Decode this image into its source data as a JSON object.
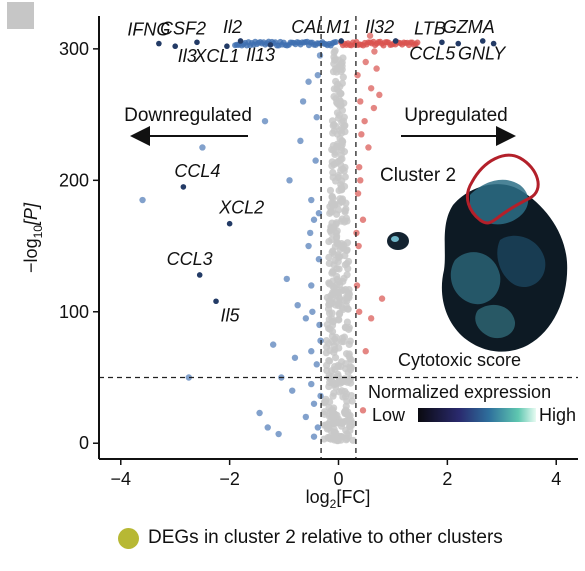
{
  "chart_data": {
    "type": "scatter",
    "xlabel_base": "log",
    "xlabel_sub": "2",
    "xlabel_tail": "[FC]",
    "ylabel_pre": "−log",
    "ylabel_sub": "10",
    "ylabel_tail": "[P]",
    "xlim": [
      -4.4,
      4.4
    ],
    "ylim": [
      -12,
      325
    ],
    "xticks": [
      -4,
      -2,
      0,
      2,
      4
    ],
    "yticks": [
      0,
      100,
      200,
      300
    ],
    "xtick_labels": [
      "−4",
      "−2",
      "0",
      "2",
      "4"
    ],
    "ytick_labels": [
      "0",
      "100",
      "200",
      "300"
    ],
    "fc_thresholds": [
      -0.32,
      0.32
    ],
    "p_threshold": 50,
    "grid": false,
    "colors": {
      "down": "#3f6fb0",
      "up": "#d9534f",
      "nonsig": "#c8c8c8",
      "label_point": "#233b66",
      "legend_dot": "#b7b834"
    },
    "labeled_genes": [
      {
        "gene": "IFNG",
        "x": -3.3,
        "y": 304
      },
      {
        "gene": "Il3",
        "x": -3.0,
        "y": 302
      },
      {
        "gene": "CSF2",
        "x": -2.6,
        "y": 305
      },
      {
        "gene": "XCL1",
        "x": -2.05,
        "y": 302
      },
      {
        "gene": "Il2",
        "x": -1.8,
        "y": 306
      },
      {
        "gene": "Il13",
        "x": -1.25,
        "y": 303
      },
      {
        "gene": "CALM1",
        "x": 0.05,
        "y": 306
      },
      {
        "gene": "Il32",
        "x": 1.05,
        "y": 306
      },
      {
        "gene": "LTB",
        "x": 1.9,
        "y": 305
      },
      {
        "gene": "CCL5",
        "x": 2.2,
        "y": 304
      },
      {
        "gene": "GZMA",
        "x": 2.65,
        "y": 306
      },
      {
        "gene": "GNLY",
        "x": 2.85,
        "y": 304
      },
      {
        "gene": "CCL4",
        "x": -2.85,
        "y": 195
      },
      {
        "gene": "XCL2",
        "x": -2.0,
        "y": 167
      },
      {
        "gene": "CCL3",
        "x": -2.55,
        "y": 128
      },
      {
        "gene": "Il5",
        "x": -2.25,
        "y": 108
      }
    ],
    "down_points": [
      [
        -0.9,
        200
      ],
      [
        -0.5,
        120
      ],
      [
        -0.55,
        150
      ],
      [
        -0.45,
        170
      ],
      [
        -0.7,
        230
      ],
      [
        -0.35,
        90
      ],
      [
        -0.6,
        95
      ],
      [
        -0.75,
        105
      ],
      [
        -0.4,
        60
      ],
      [
        -0.5,
        45
      ],
      [
        -0.45,
        30
      ],
      [
        -0.6,
        20
      ],
      [
        -0.38,
        12
      ],
      [
        -0.95,
        125
      ],
      [
        -0.8,
        65
      ],
      [
        -1.05,
        50
      ],
      [
        -1.2,
        75
      ],
      [
        -1.35,
        245
      ],
      [
        -1.45,
        23
      ],
      [
        -1.3,
        12
      ],
      [
        -1.1,
        7
      ],
      [
        -0.85,
        40
      ],
      [
        -0.65,
        260
      ],
      [
        -0.55,
        275
      ],
      [
        -0.4,
        248
      ],
      [
        -0.42,
        215
      ],
      [
        -0.5,
        185
      ],
      [
        -0.36,
        140
      ],
      [
        -0.33,
        78
      ],
      [
        -0.45,
        5
      ],
      [
        -2.5,
        225
      ],
      [
        -2.75,
        50
      ],
      [
        -3.6,
        185
      ],
      [
        -0.38,
        280
      ],
      [
        -0.34,
        295
      ],
      [
        -0.36,
        175
      ],
      [
        -0.48,
        100
      ],
      [
        -0.33,
        36
      ],
      [
        -0.5,
        70
      ],
      [
        -0.52,
        160
      ]
    ],
    "up_points": [
      [
        0.35,
        280
      ],
      [
        0.4,
        260
      ],
      [
        0.42,
        235
      ],
      [
        0.38,
        210
      ],
      [
        0.36,
        190
      ],
      [
        0.45,
        170
      ],
      [
        0.37,
        150
      ],
      [
        0.34,
        120
      ],
      [
        0.5,
        290
      ],
      [
        0.6,
        270
      ],
      [
        0.7,
        285
      ],
      [
        0.75,
        265
      ],
      [
        0.65,
        255
      ],
      [
        0.48,
        245
      ],
      [
        0.55,
        225
      ],
      [
        0.33,
        160
      ],
      [
        0.38,
        100
      ],
      [
        0.8,
        110
      ],
      [
        0.6,
        95
      ],
      [
        0.45,
        25
      ],
      [
        0.5,
        70
      ],
      [
        0.58,
        310
      ],
      [
        0.66,
        298
      ],
      [
        0.4,
        200
      ]
    ],
    "band": {
      "down_x_from": -1.9,
      "down_x_to": -0.05,
      "down_y": 304,
      "up_x_from": 0.05,
      "up_x_to": 1.45,
      "up_y": 304
    },
    "annotations": {
      "down_text": "Downregulated",
      "up_text": "Upregulated",
      "cluster_text": "Cluster 2",
      "score_text": "Cytotoxic score",
      "colorbar_title": "Normalized expression",
      "colorbar_low": "Low",
      "colorbar_high": "High"
    }
  },
  "legend": {
    "text": "DEGs in cluster 2 relative to other clusters",
    "dot_color": "#b7b834"
  }
}
